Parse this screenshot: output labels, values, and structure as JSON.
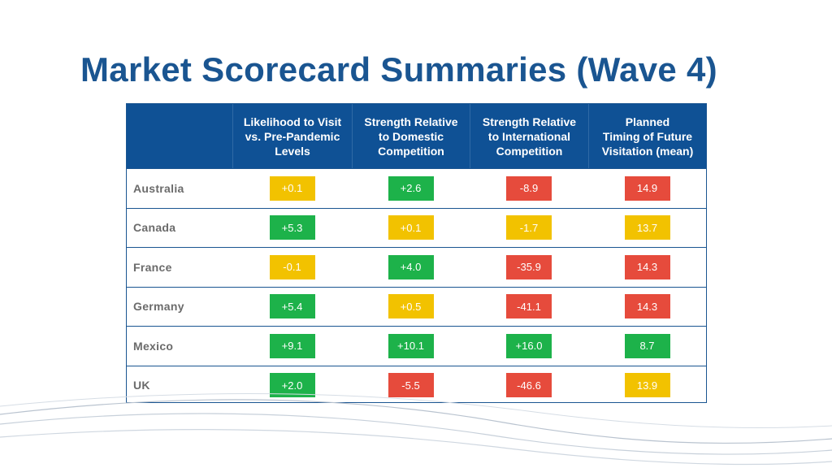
{
  "title": "Market Scorecard Summaries (Wave 4)",
  "colors": {
    "header_bg": "#0f5195",
    "title": "#1a5591",
    "green": "#1db24a",
    "yellow": "#f2c200",
    "red": "#e64b3c"
  },
  "table": {
    "headers": [
      "",
      "Likelihood to Visit\nvs. Pre-Pandemic\nLevels",
      "Strength Relative\nto Domestic\nCompetition",
      "Strength Relative\nto International\nCompetition",
      "Planned\nTiming of Future\nVisitation (mean)"
    ],
    "rows": [
      {
        "country": "Australia",
        "cells": [
          {
            "value": "+0.1",
            "status": "yellow"
          },
          {
            "value": "+2.6",
            "status": "green"
          },
          {
            "value": "-8.9",
            "status": "red"
          },
          {
            "value": "14.9",
            "status": "red"
          }
        ]
      },
      {
        "country": "Canada",
        "cells": [
          {
            "value": "+5.3",
            "status": "green"
          },
          {
            "value": "+0.1",
            "status": "yellow"
          },
          {
            "value": "-1.7",
            "status": "yellow"
          },
          {
            "value": "13.7",
            "status": "yellow"
          }
        ]
      },
      {
        "country": "France",
        "cells": [
          {
            "value": "-0.1",
            "status": "yellow"
          },
          {
            "value": "+4.0",
            "status": "green"
          },
          {
            "value": "-35.9",
            "status": "red"
          },
          {
            "value": "14.3",
            "status": "red"
          }
        ]
      },
      {
        "country": "Germany",
        "cells": [
          {
            "value": "+5.4",
            "status": "green"
          },
          {
            "value": "+0.5",
            "status": "yellow"
          },
          {
            "value": "-41.1",
            "status": "red"
          },
          {
            "value": "14.3",
            "status": "red"
          }
        ]
      },
      {
        "country": "Mexico",
        "cells": [
          {
            "value": "+9.1",
            "status": "green"
          },
          {
            "value": "+10.1",
            "status": "green"
          },
          {
            "value": "+16.0",
            "status": "green"
          },
          {
            "value": "8.7",
            "status": "green"
          }
        ]
      },
      {
        "country": "UK",
        "cells": [
          {
            "value": "+2.0",
            "status": "green"
          },
          {
            "value": "-5.5",
            "status": "red"
          },
          {
            "value": "-46.6",
            "status": "red"
          },
          {
            "value": "13.9",
            "status": "yellow"
          }
        ]
      }
    ]
  }
}
